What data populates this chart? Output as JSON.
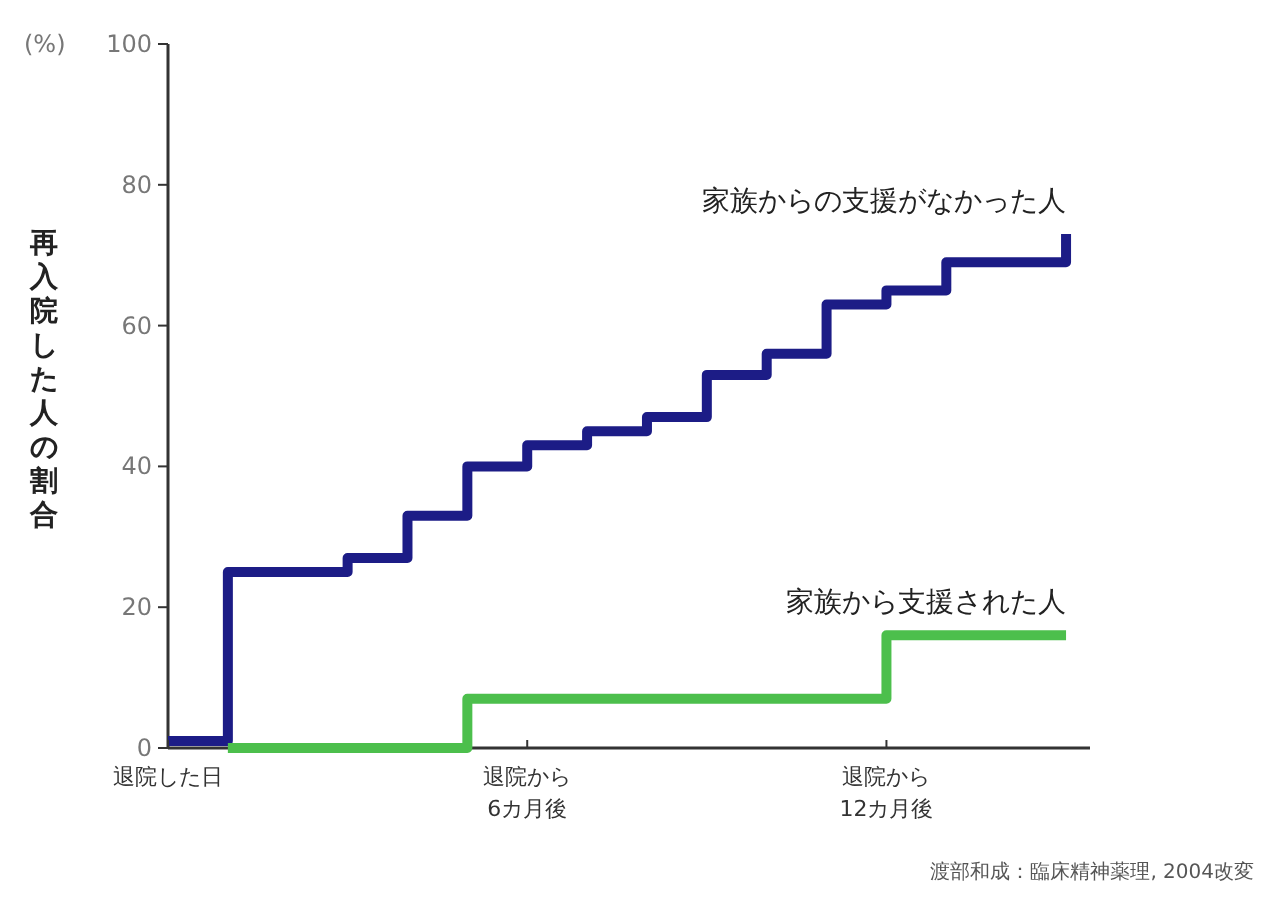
{
  "chart_data": {
    "type": "step",
    "ylabel": "再入院した人の割合",
    "categories": [
      "退院した日",
      null,
      null,
      null,
      null,
      null,
      "退院から\n6カ月後",
      null,
      null,
      null,
      null,
      null,
      "退院から\n12カ月後",
      null,
      null,
      null
    ],
    "series": [
      {
        "name": "家族からの支援がなかった人",
        "color": "#1c1c86",
        "values": [
          1,
          25,
          25,
          27,
          33,
          40,
          43,
          45,
          47,
          53,
          56,
          63,
          65,
          69,
          69,
          73
        ]
      },
      {
        "name": "家族から支援された人",
        "color": "#4cbf4c",
        "values": [
          null,
          0,
          0,
          0,
          0,
          7,
          7,
          7,
          7,
          7,
          7,
          7,
          16,
          16,
          16,
          16
        ]
      }
    ],
    "ylim": [
      0,
      100
    ],
    "yticks": [
      0,
      20,
      40,
      60,
      80,
      100
    ],
    "grid": false,
    "annotations": [
      "(%)",
      "渡部和成：臨床精神薬理, 2004改変"
    ]
  }
}
